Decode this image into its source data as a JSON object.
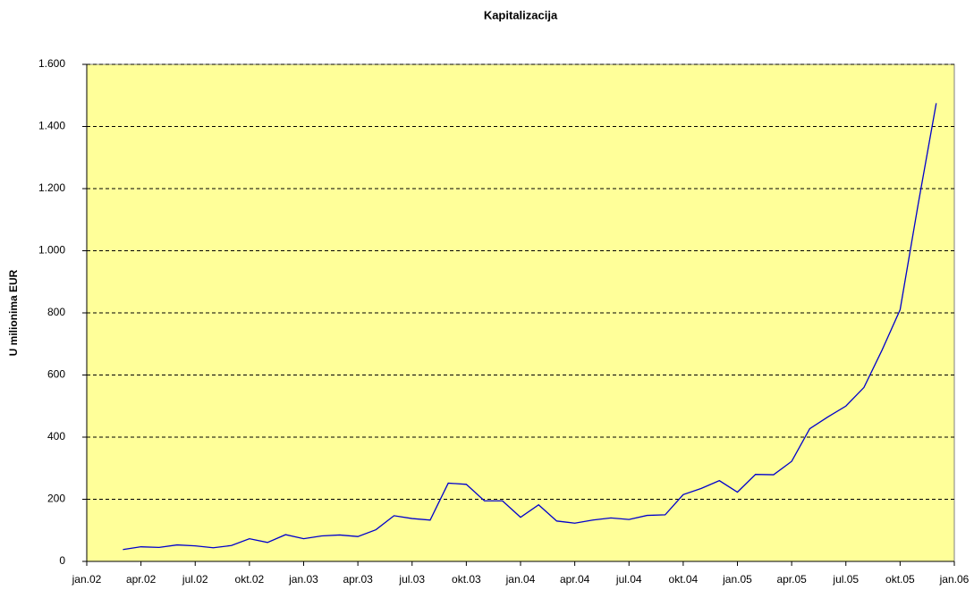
{
  "chart_data": {
    "type": "line",
    "title": "Kapitalizacija",
    "y_label": "U milionima EUR",
    "x": [
      2,
      3,
      4,
      5,
      6,
      7,
      8,
      9,
      10,
      11,
      12,
      13,
      14,
      15,
      16,
      17,
      18,
      19,
      20,
      21,
      22,
      23,
      24,
      25,
      26,
      27,
      28,
      29,
      30,
      31,
      32,
      33,
      34,
      35,
      36,
      37,
      38,
      39,
      40,
      41,
      42,
      43,
      44,
      45,
      46,
      47
    ],
    "series": [
      {
        "name": "Kapitalizacija",
        "color": "#0000cc",
        "values": [
          38,
          47,
          45,
          53,
          50,
          44,
          51,
          73,
          61,
          86,
          73,
          82,
          85,
          80,
          102,
          147,
          138,
          133,
          252,
          248,
          195,
          195,
          142,
          182,
          130,
          123,
          133,
          140,
          135,
          148,
          150,
          215,
          235,
          260,
          223,
          280,
          279,
          322,
          427,
          465,
          500,
          560,
          680,
          810,
          1150,
          1475
        ]
      }
    ],
    "xlim": [
      0,
      48
    ],
    "xticks": [
      {
        "value": 0,
        "label": "jan.02"
      },
      {
        "value": 3,
        "label": "apr.02"
      },
      {
        "value": 6,
        "label": "jul.02"
      },
      {
        "value": 9,
        "label": "okt.02"
      },
      {
        "value": 12,
        "label": "jan.03"
      },
      {
        "value": 15,
        "label": "apr.03"
      },
      {
        "value": 18,
        "label": "jul.03"
      },
      {
        "value": 21,
        "label": "okt.03"
      },
      {
        "value": 24,
        "label": "jan.04"
      },
      {
        "value": 27,
        "label": "apr.04"
      },
      {
        "value": 30,
        "label": "jul.04"
      },
      {
        "value": 33,
        "label": "okt.04"
      },
      {
        "value": 36,
        "label": "jan.05"
      },
      {
        "value": 39,
        "label": "apr.05"
      },
      {
        "value": 42,
        "label": "jul.05"
      },
      {
        "value": 45,
        "label": "okt.05"
      },
      {
        "value": 48,
        "label": "jan.06"
      }
    ],
    "ylim": [
      0,
      1600
    ],
    "yticks": [
      0,
      200,
      400,
      600,
      800,
      {
        "value": 1000,
        "label": "1.000"
      },
      {
        "value": 1200,
        "label": "1.200"
      },
      {
        "value": 1400,
        "label": "1.400"
      },
      {
        "value": 1600,
        "label": "1.600"
      }
    ],
    "grid": true,
    "plot_background": "#ffff99"
  }
}
